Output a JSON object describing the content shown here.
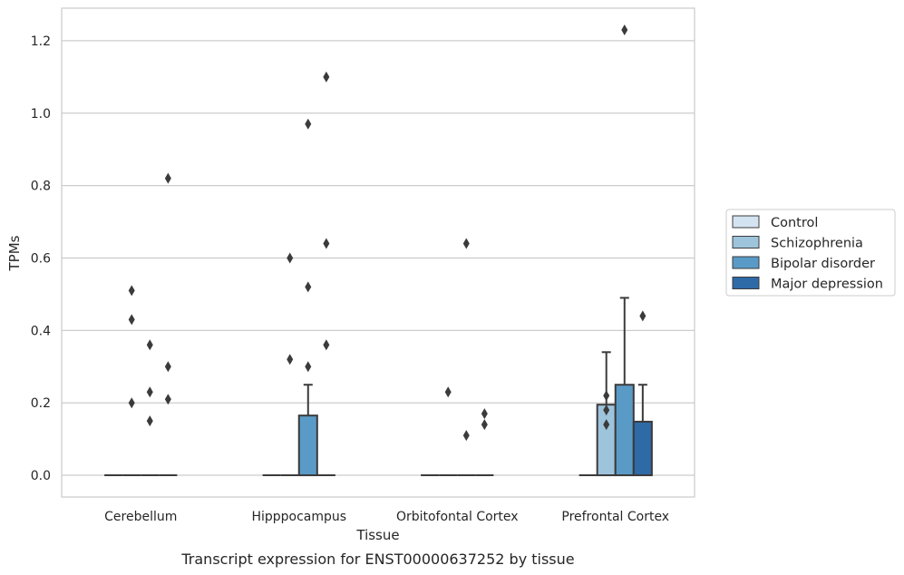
{
  "chart_data": {
    "type": "box",
    "title": "",
    "caption": "Transcript expression for ENST00000637252 by tissue",
    "xlabel": "Tissue",
    "ylabel": "TPMs",
    "ylim": [
      -0.06,
      1.29
    ],
    "yticks": [
      0.0,
      0.2,
      0.4,
      0.6,
      0.8,
      1.0,
      1.2
    ],
    "ytick_labels": [
      "0.0",
      "0.2",
      "0.4",
      "0.6",
      "0.8",
      "1.0",
      "1.2"
    ],
    "grid": "horizontal",
    "legend_position": "right",
    "categories": [
      "Cerebellum",
      "Hipppocampus",
      "Orbitofontal Cortex",
      "Prefrontal Cortex"
    ],
    "series": [
      {
        "name": "Control",
        "color": "#d4e3f2",
        "boxes": [
          {
            "q1": 0,
            "median": 0,
            "q3": 0,
            "whislo": 0,
            "whishi": 0,
            "fliers": []
          },
          {
            "q1": 0,
            "median": 0,
            "q3": 0,
            "whislo": 0,
            "whishi": 0,
            "fliers": []
          },
          {
            "q1": 0,
            "median": 0,
            "q3": 0,
            "whislo": 0,
            "whishi": 0,
            "fliers": []
          },
          {
            "q1": 0,
            "median": 0,
            "q3": 0,
            "whislo": 0,
            "whishi": 0,
            "fliers": []
          }
        ]
      },
      {
        "name": "Schizophrenia",
        "color": "#9ec4dc",
        "boxes": [
          {
            "q1": 0,
            "median": 0,
            "q3": 0,
            "whislo": 0,
            "whishi": 0,
            "fliers": [
              0.51,
              0.43,
              0.2
            ]
          },
          {
            "q1": 0,
            "median": 0,
            "q3": 0,
            "whislo": 0,
            "whishi": 0,
            "fliers": [
              0.6,
              0.32
            ]
          },
          {
            "q1": 0,
            "median": 0,
            "q3": 0,
            "whislo": 0,
            "whishi": 0,
            "fliers": [
              0.23
            ]
          },
          {
            "q1": 0,
            "median": 0,
            "q3": 0.195,
            "whislo": 0,
            "whishi": 0.34,
            "fliers": [
              0.22,
              0.18,
              0.14
            ]
          }
        ]
      },
      {
        "name": "Bipolar disorder",
        "color": "#5a9ac7",
        "boxes": [
          {
            "q1": 0,
            "median": 0,
            "q3": 0,
            "whislo": 0,
            "whishi": 0,
            "fliers": [
              0.36,
              0.23,
              0.15
            ]
          },
          {
            "q1": 0,
            "median": 0,
            "q3": 0.165,
            "whislo": 0,
            "whishi": 0.25,
            "fliers": [
              0.3,
              0.97,
              0.52
            ]
          },
          {
            "q1": 0,
            "median": 0,
            "q3": 0,
            "whislo": 0,
            "whishi": 0,
            "fliers": [
              0.64,
              0.11
            ]
          },
          {
            "q1": 0,
            "median": 0,
            "q3": 0.25,
            "whislo": 0,
            "whishi": 0.49,
            "fliers": [
              1.23
            ]
          }
        ]
      },
      {
        "name": "Major depression",
        "color": "#2e6aa6",
        "boxes": [
          {
            "q1": 0,
            "median": 0,
            "q3": 0,
            "whislo": 0,
            "whishi": 0,
            "fliers": [
              0.82,
              0.3,
              0.21
            ]
          },
          {
            "q1": 0,
            "median": 0,
            "q3": 0,
            "whislo": 0,
            "whishi": 0,
            "fliers": [
              1.1,
              0.64,
              0.36
            ]
          },
          {
            "q1": 0,
            "median": 0,
            "q3": 0,
            "whislo": 0,
            "whishi": 0,
            "fliers": [
              0.14,
              0.17
            ]
          },
          {
            "q1": 0,
            "median": 0,
            "q3": 0.148,
            "whislo": 0,
            "whishi": 0.25,
            "fliers": [
              0.44
            ]
          }
        ]
      }
    ]
  }
}
